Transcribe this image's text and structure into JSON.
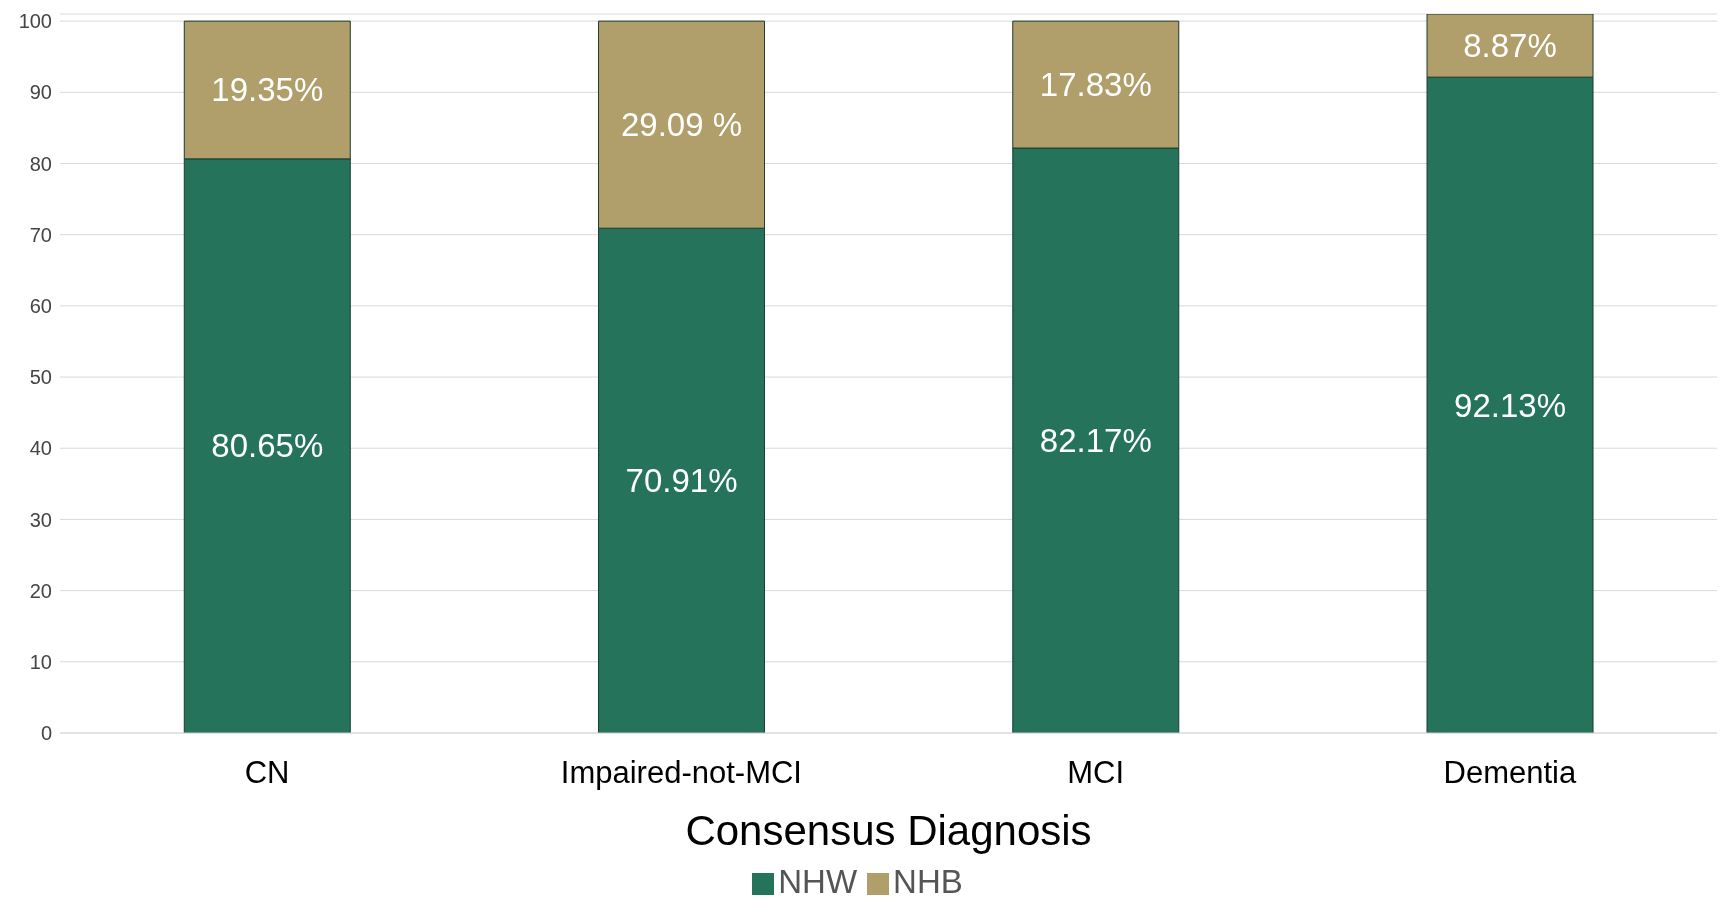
{
  "chart_data": {
    "type": "bar",
    "stacked": true,
    "xlabel": "Consensus Diagnosis",
    "categories": [
      "CN",
      "Impaired-not-MCI",
      "MCI",
      "Dementia"
    ],
    "series": [
      {
        "name": "NHW",
        "color": "#24735a",
        "values": [
          80.65,
          70.91,
          82.17,
          92.13
        ],
        "value_labels": [
          "80.65%",
          "70.91%",
          "82.17%",
          "92.13%"
        ]
      },
      {
        "name": "NHB",
        "color": "#b09f6a",
        "values": [
          19.35,
          29.09,
          17.83,
          8.87
        ],
        "value_labels": [
          "19.35%",
          "29.09 %",
          "17.83%",
          "8.87%"
        ]
      }
    ],
    "ylim": [
      0,
      101
    ],
    "yticks": [
      0,
      10,
      20,
      30,
      40,
      50,
      60,
      70,
      80,
      90,
      100
    ],
    "grid": "y",
    "legend": "bottom"
  }
}
